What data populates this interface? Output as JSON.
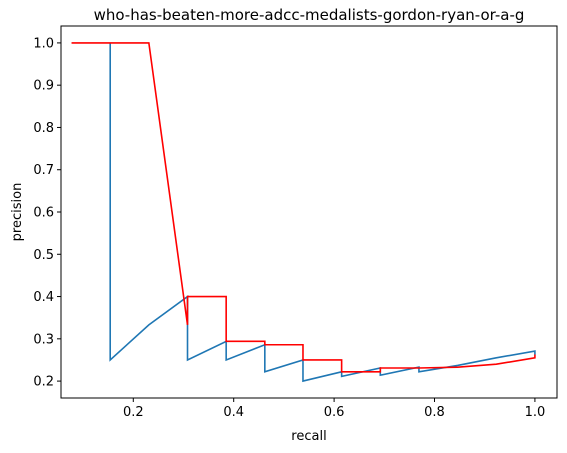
{
  "chart_data": {
    "type": "line",
    "title": "who-has-beaten-more-adcc-medalists-gordon-ryan-or-a-g",
    "xlabel": "recall",
    "ylabel": "precision",
    "xlim": [
      0.056,
      1.044
    ],
    "ylim": [
      0.16,
      1.04
    ],
    "xticks": [
      0.2,
      0.4,
      0.6,
      0.8,
      1.0
    ],
    "xtick_labels": [
      "0.2",
      "0.4",
      "0.6",
      "0.8",
      "1.0"
    ],
    "yticks": [
      0.2,
      0.3,
      0.4,
      0.5,
      0.6,
      0.7,
      0.8,
      0.9,
      1.0
    ],
    "ytick_labels": [
      "0.2",
      "0.3",
      "0.4",
      "0.5",
      "0.6",
      "0.7",
      "0.8",
      "0.9",
      "1.0"
    ],
    "grid": false,
    "colors": {
      "series1": "#1f77b4",
      "series2": "#ff0000"
    },
    "series": [
      {
        "color": "#1f77b4",
        "x": [
          0.154,
          0.154,
          0.231,
          0.308,
          0.308,
          0.385,
          0.385,
          0.462,
          0.462,
          0.538,
          0.538,
          0.615,
          0.615,
          0.692,
          0.692,
          0.769,
          0.769,
          0.846,
          0.923,
          1.0,
          1.0
        ],
        "y": [
          1.0,
          0.25,
          0.333,
          0.4,
          0.25,
          0.294,
          0.25,
          0.286,
          0.222,
          0.25,
          0.2,
          0.222,
          0.211,
          0.231,
          0.214,
          0.233,
          0.222,
          0.237,
          0.255,
          0.271,
          0.263
        ]
      },
      {
        "color": "#ff0000",
        "x": [
          0.077,
          0.231,
          0.308,
          0.308,
          0.385,
          0.385,
          0.462,
          0.462,
          0.538,
          0.538,
          0.615,
          0.615,
          0.692,
          0.692,
          0.769,
          0.846,
          0.923,
          1.0,
          1.0
        ],
        "y": [
          1.0,
          1.0,
          0.333,
          0.4,
          0.4,
          0.294,
          0.294,
          0.286,
          0.286,
          0.25,
          0.25,
          0.222,
          0.222,
          0.231,
          0.231,
          0.233,
          0.24,
          0.255,
          0.263
        ]
      }
    ]
  }
}
